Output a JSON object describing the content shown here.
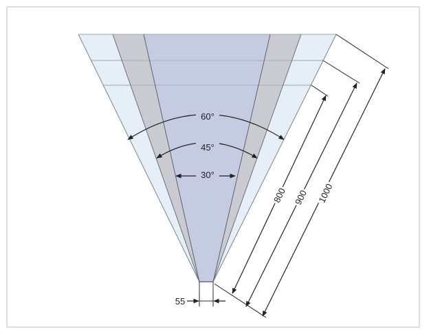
{
  "angles": {
    "wide": "60°",
    "medium": "45°",
    "narrow": "30°"
  },
  "distances": {
    "d1": "800",
    "d2": "900",
    "d3": "1000"
  },
  "width": "55",
  "colors": {
    "frame_border": "#bfbfbf",
    "zone_wide": "#e6eef7",
    "zone_medium": "#c9cbd0",
    "zone_narrow": "#c5cbe0",
    "line": "#555555",
    "dimension_line": "#222222"
  }
}
